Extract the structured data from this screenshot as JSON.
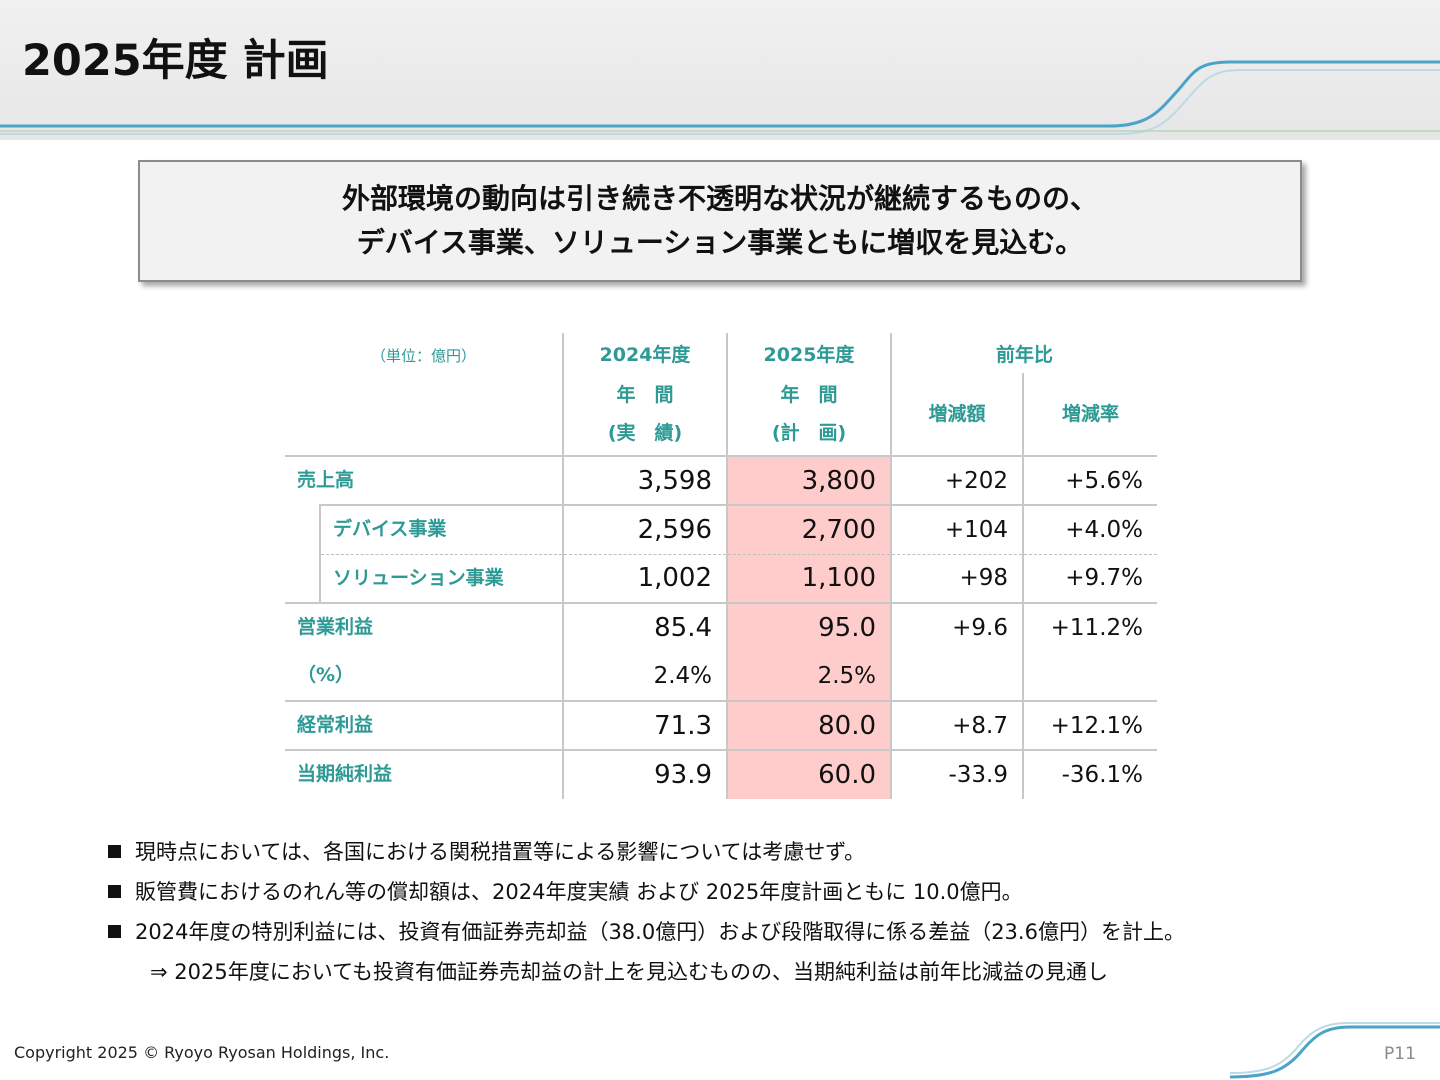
{
  "header": {
    "title": "2025年度 計画"
  },
  "summary": {
    "line1": "外部環境の動向は引き続き不透明な状況が継続するものの、",
    "line2": "デバイス事業、ソリューション事業ともに増収を見込む。"
  },
  "table": {
    "unit_label": "（単位：億円）",
    "col_2024_year": "2024年度",
    "col_2024_sub1": "年　間",
    "col_2024_sub2": "(実　績)",
    "col_2025_year": "2025年度",
    "col_2025_sub1": "年　間",
    "col_2025_sub2": "(計　画)",
    "col_yoy": "前年比",
    "col_change": "増減額",
    "col_rate": "増減率",
    "rows": [
      {
        "label": "売上高",
        "actual": "3,598",
        "plan": "3,800",
        "change": "+202",
        "rate": "+5.6%"
      },
      {
        "label": "デバイス事業",
        "actual": "2,596",
        "plan": "2,700",
        "change": "+104",
        "rate": "+4.0%"
      },
      {
        "label": "ソリューション事業",
        "actual": "1,002",
        "plan": "1,100",
        "change": "+98",
        "rate": "+9.7%"
      },
      {
        "label": "営業利益",
        "actual": "85.4",
        "plan": "95.0",
        "change": "+9.6",
        "rate": "+11.2%"
      },
      {
        "label": "（%）",
        "actual": "2.4%",
        "plan": "2.5%",
        "change": "",
        "rate": ""
      },
      {
        "label": "経常利益",
        "actual": "71.3",
        "plan": "80.0",
        "change": "+8.7",
        "rate": "+12.1%"
      },
      {
        "label": "当期純利益",
        "actual": "93.9",
        "plan": "60.0",
        "change": "-33.9",
        "rate": "-36.1%"
      }
    ]
  },
  "notes": {
    "items": [
      "現時点においては、各国における関税措置等による影響については考慮せず。",
      "販管費におけるのれん等の償却額は、2024年度実績 および 2025年度計画ともに 10.0億円。",
      "2024年度の特別利益には、投資有価証券売却益（38.0億円）および段階取得に係る差益（23.6億円）を計上。"
    ],
    "sub": "⇒ 2025年度においても投資有価証券売却益の計上を見込むものの、当期純利益は前年比減益の見通し"
  },
  "footer": {
    "copyright": "Copyright 2025 © Ryoyo Ryosan Holdings, Inc.",
    "page": "P11"
  },
  "colors": {
    "accent_teal": "#2e9a96",
    "plan_highlight": "#ffcccc",
    "deco_line": "#4aa3c8"
  }
}
